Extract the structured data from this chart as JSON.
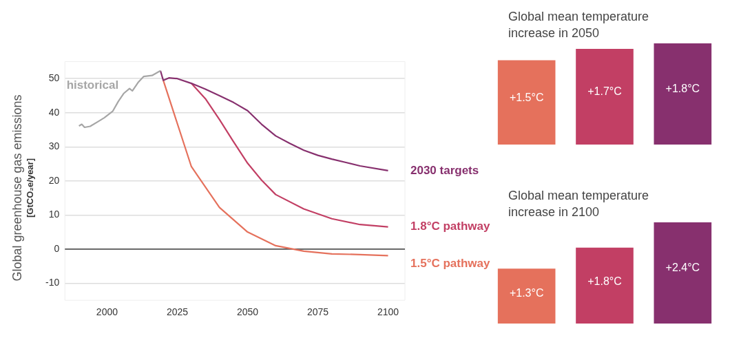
{
  "chart_data": [
    {
      "type": "line",
      "ylabel": "Global greenhouse gas emissions\n[GtCO₂e/year]",
      "xlim": [
        1985,
        2106
      ],
      "xticks": [
        2000,
        2025,
        2050,
        2075,
        2100
      ],
      "ylim": [
        -15,
        55
      ],
      "yticks": [
        -10,
        0,
        10,
        20,
        30,
        40,
        50
      ],
      "grid": "y",
      "ref_lines": [
        {
          "axis": "y",
          "value": 0,
          "color": "#555555"
        }
      ],
      "series": [
        {
          "name": "historical",
          "color": "#a6a6a6",
          "x": [
            1990,
            1991,
            1992,
            1994,
            1997,
            1999,
            2002,
            2004,
            2006,
            2008,
            2009,
            2011,
            2013,
            2016,
            2019
          ],
          "values": [
            36.1,
            36.6,
            35.7,
            36.0,
            37.5,
            38.5,
            40.4,
            43.3,
            45.7,
            47.1,
            46.4,
            48.8,
            50.6,
            50.9,
            52.3
          ]
        },
        {
          "name": "2030 targets",
          "color": "#87306e",
          "x": [
            2019,
            2020,
            2022,
            2025,
            2030,
            2035,
            2040,
            2045,
            2050,
            2055,
            2060,
            2065,
            2070,
            2075,
            2080,
            2085,
            2090,
            2100
          ],
          "values": [
            52.3,
            49.5,
            50.2,
            50.0,
            48.6,
            46.9,
            45.0,
            43.0,
            40.6,
            36.6,
            33.2,
            31.0,
            29.0,
            27.5,
            26.4,
            25.4,
            24.4,
            23.0
          ]
        },
        {
          "name": "1.8°C pathway",
          "color": "#c23f64",
          "x": [
            2030,
            2035,
            2040,
            2045,
            2050,
            2055,
            2060,
            2070,
            2080,
            2090,
            2100
          ],
          "values": [
            48.6,
            44.1,
            38.0,
            31.5,
            25.2,
            20.2,
            16.0,
            11.8,
            8.9,
            7.2,
            6.5
          ]
        },
        {
          "name": "1.5°C pathway",
          "color": "#e5715c",
          "x": [
            2020,
            2030,
            2040,
            2050,
            2060,
            2070,
            2080,
            2090,
            2100
          ],
          "values": [
            49.5,
            24.2,
            12.2,
            5.0,
            1.0,
            -0.6,
            -1.4,
            -1.6,
            -1.9
          ]
        }
      ]
    },
    {
      "type": "bar",
      "title": "Global mean temperature increase in 2050",
      "categories": [
        null,
        null,
        null
      ],
      "values": [
        1.5,
        1.7,
        1.8
      ],
      "colors": [
        "#e5715c",
        "#c23f64",
        "#87306e"
      ],
      "value_labels": [
        "+1.5°C",
        "+1.7°C",
        "+1.8°C"
      ]
    },
    {
      "type": "bar",
      "title": "Global mean temperature increase in 2100",
      "categories": [
        null,
        null,
        null
      ],
      "values": [
        1.3,
        1.8,
        2.4
      ],
      "colors": [
        "#e5715c",
        "#c23f64",
        "#87306e"
      ],
      "value_labels": [
        "+1.3°C",
        "+1.8°C",
        "+2.4°C"
      ]
    }
  ]
}
